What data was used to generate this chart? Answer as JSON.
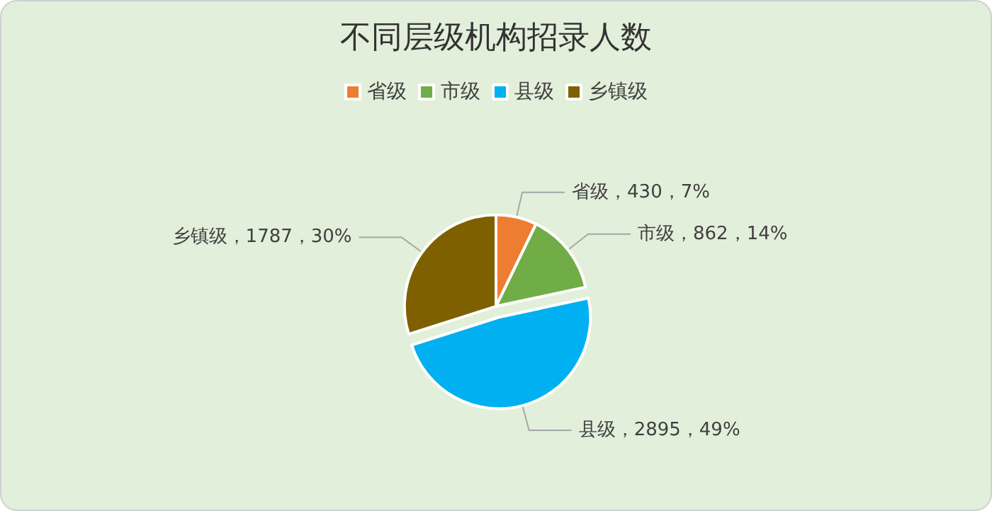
{
  "chart_data": {
    "type": "pie",
    "title": "不同层级机构招录人数",
    "categories": [
      "省级",
      "市级",
      "县级",
      "乡镇级"
    ],
    "values": [
      430,
      862,
      2895,
      1787
    ],
    "colors": [
      "#ed7d31",
      "#70ad47",
      "#00b0f0",
      "#7f6000"
    ],
    "value_labels": [
      "省级，430，7%",
      "市级，862，14%",
      "县级，2895，49%",
      "乡镇级，1787，30%"
    ],
    "legend": "top"
  }
}
